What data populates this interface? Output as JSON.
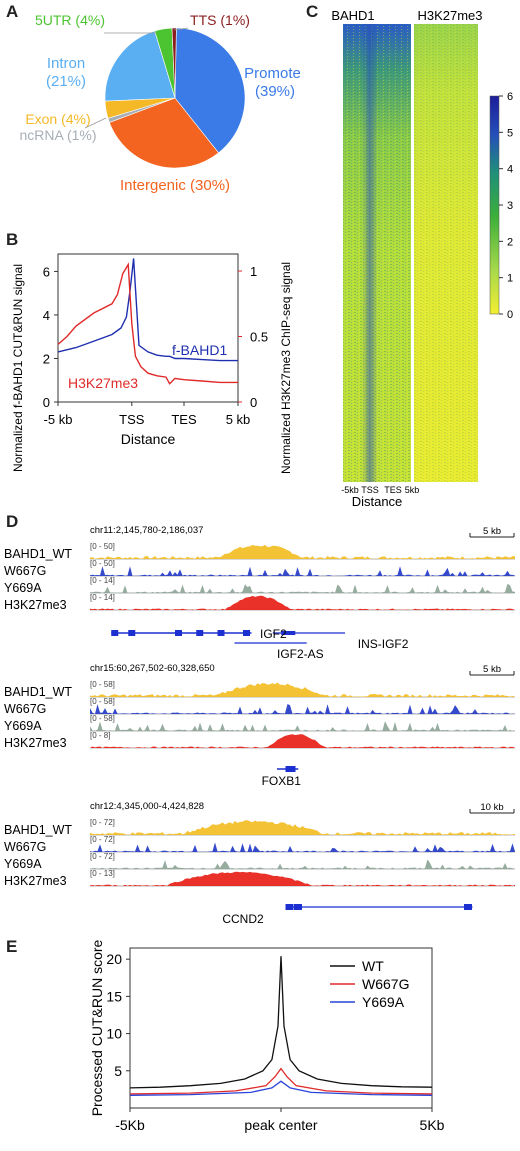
{
  "panels": {
    "A": {
      "letter": "A"
    },
    "B": {
      "letter": "B"
    },
    "C": {
      "letter": "C"
    },
    "D": {
      "letter": "D"
    },
    "E": {
      "letter": "E"
    }
  },
  "chart_data": [
    {
      "id": "A",
      "type": "pie",
      "slices": [
        {
          "label": "Promoter (39%)",
          "label_lines": [
            "Promoter",
            "(39%)"
          ],
          "value": 39,
          "color": "#3b7be8"
        },
        {
          "label": "Intergenic (30%)",
          "label_lines": [
            "Intergenic (30%)"
          ],
          "value": 30,
          "color": "#f2641f"
        },
        {
          "label": "ncRNA (1%)",
          "label_lines": [
            "ncRNA (1%)"
          ],
          "value": 1,
          "color": "#a7aeb6"
        },
        {
          "label": "Exon (4%)",
          "label_lines": [
            "Exon (4%)"
          ],
          "value": 4,
          "color": "#f5b826"
        },
        {
          "label": "Intron (21%)",
          "label_lines": [
            "Intron",
            "(21%)"
          ],
          "value": 21,
          "color": "#5aaef2"
        },
        {
          "label": "5UTR (4%)",
          "label_lines": [
            "5UTR (4%)"
          ],
          "value": 4,
          "color": "#4cc431"
        },
        {
          "label": "TTS (1%)",
          "label_lines": [
            "TTS (1%)"
          ],
          "value": 1,
          "color": "#8b1d1d"
        }
      ]
    },
    {
      "id": "B",
      "type": "line",
      "xlabel": "Distance",
      "ylabel_left": "Normalized f-BAHD1 CUT&RUN signal",
      "ylabel_right": "Normalized H3K27me3 ChIP-seq signal",
      "x_ticks": [
        "-5 kb",
        "TSS",
        "TES",
        "5 kb"
      ],
      "y_left_ticks": [
        "0",
        "2",
        "4",
        "6"
      ],
      "y_right_ticks": [
        "0",
        "0.5",
        "1"
      ],
      "ylim_left": [
        0,
        6.8
      ],
      "ylim_right": [
        0,
        1.13
      ],
      "series": [
        {
          "name": "f-BAHD1",
          "axis": "left",
          "color": "#1f2fb0",
          "x": [
            0,
            0.1,
            0.2,
            0.3,
            0.35,
            0.38,
            0.4,
            0.42,
            0.45,
            0.5,
            0.55,
            0.6,
            0.62,
            0.65,
            0.7,
            0.8,
            0.9,
            1.0
          ],
          "values": [
            2.3,
            2.5,
            2.8,
            3.1,
            3.4,
            3.9,
            5.1,
            6.6,
            2.6,
            2.3,
            2.15,
            2.1,
            2.1,
            2.0,
            2.0,
            1.95,
            1.9,
            1.9
          ]
        },
        {
          "name": "H3K27me3",
          "axis": "right",
          "color": "#e02a2a",
          "x": [
            0,
            0.05,
            0.1,
            0.2,
            0.3,
            0.33,
            0.36,
            0.39,
            0.41,
            0.43,
            0.46,
            0.5,
            0.55,
            0.6,
            0.62,
            0.65,
            0.7,
            0.8,
            0.9,
            1.0
          ],
          "values": [
            0.44,
            0.5,
            0.58,
            0.68,
            0.75,
            0.82,
            0.98,
            1.05,
            0.6,
            0.35,
            0.27,
            0.22,
            0.2,
            0.19,
            0.14,
            0.18,
            0.17,
            0.16,
            0.15,
            0.15
          ]
        }
      ]
    },
    {
      "id": "C",
      "type": "heatmap",
      "columns": [
        "BAHD1",
        "H3K27me3"
      ],
      "xlabel": "Distance",
      "x_ticks": [
        "-5kb",
        "TSS",
        "TES",
        "5kb"
      ],
      "colorbar_ticks": [
        "0",
        "1",
        "2",
        "3",
        "4",
        "5",
        "6"
      ],
      "colorbar_range": [
        0,
        6
      ],
      "colorscale": [
        "#f2ee30",
        "#a8d94a",
        "#3cae3a",
        "#1f8f7a",
        "#2450b8",
        "#1d1d9a"
      ]
    },
    {
      "id": "E",
      "type": "line",
      "ylabel": "Processed CUT&RUN score",
      "x_ticks": [
        "-5Kb",
        "peak center",
        "5Kb"
      ],
      "y_ticks": [
        "5",
        "10",
        "15",
        "20"
      ],
      "ylim": [
        0,
        21.5
      ],
      "series": [
        {
          "name": "WT",
          "color": "#111111",
          "x": [
            0,
            0.1,
            0.2,
            0.3,
            0.38,
            0.44,
            0.47,
            0.49,
            0.5,
            0.51,
            0.53,
            0.56,
            0.62,
            0.7,
            0.8,
            0.9,
            1.0
          ],
          "values": [
            2.7,
            2.8,
            3.0,
            3.3,
            3.9,
            5.0,
            6.5,
            11.0,
            20.4,
            11.0,
            6.5,
            5.0,
            3.9,
            3.3,
            3.0,
            2.85,
            2.8
          ]
        },
        {
          "name": "W667G",
          "color": "#e02a2a",
          "x": [
            0,
            0.2,
            0.35,
            0.45,
            0.48,
            0.5,
            0.52,
            0.55,
            0.65,
            0.8,
            1.0
          ],
          "values": [
            1.9,
            2.0,
            2.3,
            3.0,
            4.2,
            5.3,
            4.2,
            3.0,
            2.3,
            2.0,
            1.9
          ]
        },
        {
          "name": "Y669A",
          "color": "#2a43d8",
          "x": [
            0,
            0.2,
            0.4,
            0.47,
            0.5,
            0.53,
            0.6,
            0.8,
            1.0
          ],
          "values": [
            1.7,
            1.8,
            2.1,
            2.7,
            3.6,
            2.7,
            2.1,
            1.8,
            1.7
          ]
        }
      ]
    }
  ],
  "tracks": {
    "track_labels": [
      "BAHD1_WT",
      "W667G",
      "Y669A",
      "H3K27me3"
    ],
    "loci": [
      {
        "coord": "chr11:2,145,780-2,186,037",
        "scale": "5 kb",
        "ranges": [
          "[0 - 50]",
          "[0 - 50]",
          "[0 - 14]",
          "[0 - 14]"
        ],
        "genes": [
          "IGF2",
          "INS-IGF2",
          "IGF2-AS"
        ]
      },
      {
        "coord": "chr15:60,267,502-60,328,650",
        "scale": "5 kb",
        "ranges": [
          "[0 - 58]",
          "[0 - 58]",
          "[0 - 58]",
          "[0 - 8]"
        ],
        "genes": [
          "FOXB1"
        ]
      },
      {
        "coord": "chr12:4,345,000-4,424,828",
        "scale": "10 kb",
        "ranges": [
          "[0 - 72]",
          "[0 - 72]",
          "[0 - 72]",
          "[0 - 13]"
        ],
        "genes": [
          "CCND2"
        ]
      }
    ],
    "colors": {
      "BAHD1_WT": "#f2c02a",
      "W667G": "#2a3fc8",
      "Y669A": "#8fa89a",
      "H3K27me3": "#e8261e"
    }
  }
}
